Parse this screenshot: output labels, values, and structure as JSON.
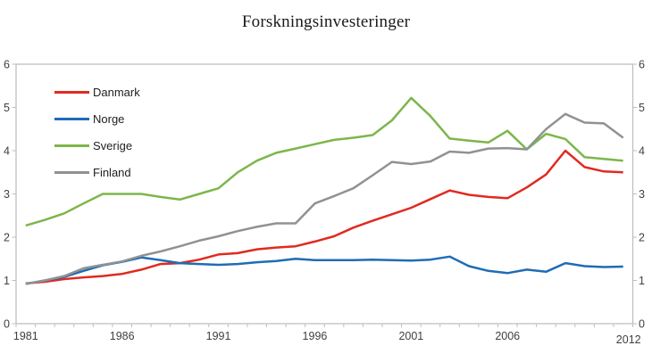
{
  "chart_data": {
    "type": "line",
    "title": "Forskningsinvesteringer",
    "x_start_year": 1981,
    "x_end_year": 2012,
    "x_labels": [
      "1981",
      "1986",
      "1991",
      "1996",
      "2001",
      "2006",
      "2012"
    ],
    "y_ticks": [
      "0",
      "1",
      "2",
      "3",
      "4",
      "5",
      "6"
    ],
    "ylim": [
      0,
      6
    ],
    "grid": false,
    "legend_position": "top-left-inside",
    "series": [
      {
        "name": "Danmark",
        "color": "#e02a21",
        "values": [
          0.93,
          0.97,
          1.03,
          1.07,
          1.1,
          1.15,
          1.25,
          1.38,
          1.4,
          1.48,
          1.6,
          1.63,
          1.72,
          1.76,
          1.79,
          1.9,
          2.02,
          2.22,
          2.38,
          2.53,
          2.68,
          2.88,
          3.08,
          2.98,
          2.93,
          2.9,
          3.15,
          3.45,
          4.0,
          3.62,
          3.52,
          3.5
        ]
      },
      {
        "name": "Norge",
        "color": "#1f6cb5",
        "values": [
          0.92,
          1.0,
          1.08,
          1.22,
          1.35,
          1.43,
          1.53,
          1.47,
          1.4,
          1.38,
          1.36,
          1.38,
          1.42,
          1.45,
          1.5,
          1.47,
          1.47,
          1.47,
          1.48,
          1.47,
          1.46,
          1.48,
          1.55,
          1.33,
          1.22,
          1.17,
          1.25,
          1.2,
          1.4,
          1.33,
          1.31,
          1.32
        ]
      },
      {
        "name": "Sverige",
        "color": "#7db64a",
        "values": [
          2.27,
          2.4,
          2.55,
          2.78,
          3.0,
          3.0,
          3.0,
          2.93,
          2.87,
          3.0,
          3.13,
          3.5,
          3.77,
          3.95,
          4.05,
          4.15,
          4.25,
          4.3,
          4.36,
          4.7,
          5.22,
          4.8,
          4.28,
          4.23,
          4.19,
          4.46,
          4.03,
          4.39,
          4.27,
          3.85,
          3.81,
          3.77
        ]
      },
      {
        "name": "Finland",
        "color": "#8f9295",
        "values": [
          0.92,
          1.0,
          1.1,
          1.28,
          1.36,
          1.44,
          1.57,
          1.67,
          1.79,
          1.92,
          2.02,
          2.14,
          2.24,
          2.32,
          2.32,
          2.78,
          2.95,
          3.13,
          3.43,
          3.74,
          3.69,
          3.75,
          3.98,
          3.95,
          4.05,
          4.06,
          4.03,
          4.5,
          4.85,
          4.65,
          4.63,
          4.3
        ]
      }
    ],
    "colors": {
      "axis": "#bfbfbf",
      "tick_text": "#3f3f3f"
    }
  }
}
